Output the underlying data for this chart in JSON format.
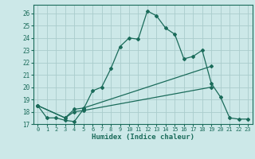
{
  "xlabel": "Humidex (Indice chaleur)",
  "background_color": "#cce8e8",
  "grid_color": "#aacccc",
  "line_color": "#1a6b5a",
  "xlim": [
    -0.5,
    23.5
  ],
  "ylim": [
    17,
    26.7
  ],
  "xticks": [
    0,
    1,
    2,
    3,
    4,
    5,
    6,
    7,
    8,
    9,
    10,
    11,
    12,
    13,
    14,
    15,
    16,
    17,
    18,
    19,
    20,
    21,
    22,
    23
  ],
  "yticks": [
    17,
    18,
    19,
    20,
    21,
    22,
    23,
    24,
    25,
    26
  ],
  "line1_x": [
    0,
    1,
    2,
    3,
    4,
    5,
    6,
    7,
    8,
    9,
    10,
    11,
    12,
    13,
    14,
    15,
    16,
    17,
    18,
    19,
    20,
    21,
    22,
    23
  ],
  "line1_y": [
    18.5,
    17.5,
    17.5,
    17.3,
    17.2,
    18.2,
    19.7,
    20.0,
    21.5,
    23.3,
    24.0,
    23.9,
    26.2,
    25.8,
    24.8,
    24.3,
    22.3,
    22.5,
    23.0,
    20.3,
    19.2,
    17.5,
    17.4,
    17.4
  ],
  "line2_x": [
    0,
    3,
    4,
    5,
    19
  ],
  "line2_y": [
    18.5,
    17.5,
    18.2,
    18.3,
    21.7
  ],
  "line3_x": [
    0,
    3,
    4,
    5,
    19
  ],
  "line3_y": [
    18.5,
    17.5,
    18.0,
    18.1,
    20.0
  ]
}
